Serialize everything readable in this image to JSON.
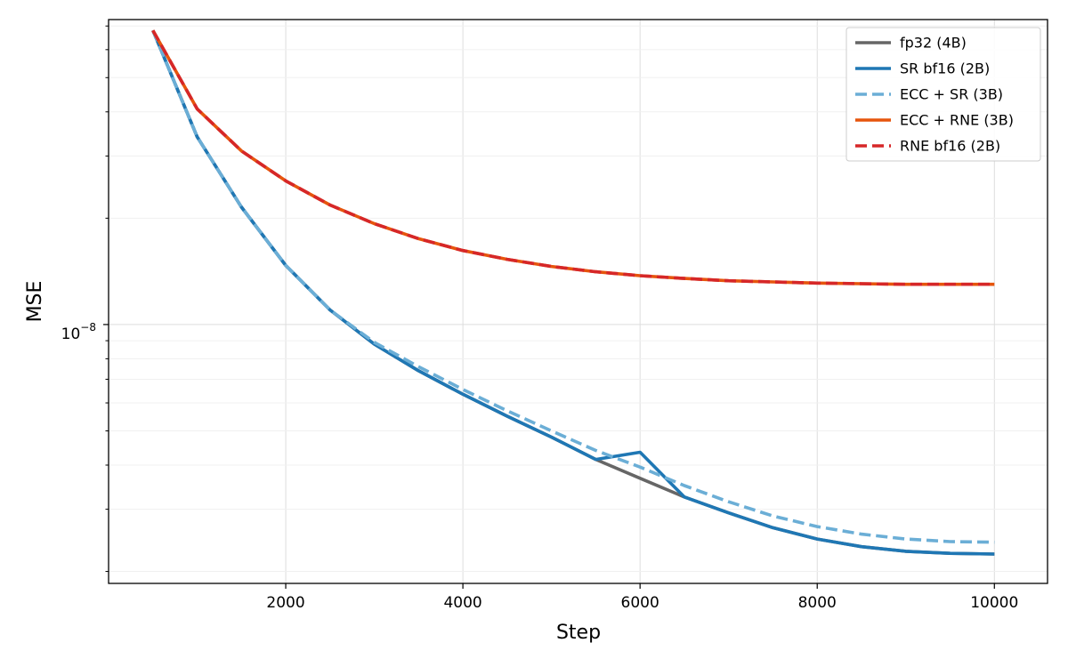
{
  "chart_data": {
    "type": "line",
    "title": "",
    "xlabel": "Step",
    "ylabel": "MSE",
    "xlim": [
      0,
      10600
    ],
    "ylim": [
      1.85e-09,
      7.3e-08
    ],
    "yscale": "log",
    "grid": true,
    "legend_position": "top-right",
    "x_ticks": [
      2000,
      4000,
      6000,
      8000,
      10000
    ],
    "x_tick_labels": [
      "2000",
      "4000",
      "6000",
      "8000",
      "10000"
    ],
    "y_major_tick": 1e-08,
    "y_tick_label_base": "10",
    "y_tick_label_exp": "−8",
    "series": [
      {
        "name": "fp32 (4B)",
        "color": "#666666",
        "dash": "solid",
        "x": [
          500,
          1000,
          1500,
          2000,
          2500,
          3000,
          3500,
          4000,
          4500,
          5000,
          5500,
          6000,
          6500,
          7000,
          7500,
          8000,
          8500,
          9000,
          9500,
          10000
        ],
        "y": [
          6.8e-08,
          3.4e-08,
          2.15e-08,
          1.47e-08,
          1.1e-08,
          8.8e-09,
          7.4e-09,
          6.35e-09,
          5.5e-09,
          4.8e-09,
          4.15e-09,
          3.67e-09,
          3.25e-09,
          2.93e-09,
          2.66e-09,
          2.47e-09,
          2.35e-09,
          2.28e-09,
          2.25e-09,
          2.24e-09
        ]
      },
      {
        "name": "SR bf16 (2B)",
        "color": "#1f77b4",
        "dash": "solid",
        "x": [
          500,
          1000,
          1500,
          2000,
          2500,
          3000,
          3500,
          4000,
          4500,
          5000,
          5500,
          6000,
          6500,
          7000,
          7500,
          8000,
          8500,
          9000,
          9500,
          10000
        ],
        "y": [
          6.8e-08,
          3.4e-08,
          2.15e-08,
          1.47e-08,
          1.1e-08,
          8.8e-09,
          7.4e-09,
          6.35e-09,
          5.5e-09,
          4.8e-09,
          4.15e-09,
          4.35e-09,
          3.25e-09,
          2.93e-09,
          2.66e-09,
          2.47e-09,
          2.35e-09,
          2.28e-09,
          2.25e-09,
          2.24e-09
        ]
      },
      {
        "name": "ECC + SR (3B)",
        "color": "#6baed6",
        "dash": "dashed",
        "x": [
          500,
          1000,
          1500,
          2000,
          2500,
          3000,
          3500,
          4000,
          4500,
          5000,
          5500,
          6000,
          6500,
          7000,
          7500,
          8000,
          8500,
          9000,
          9500,
          10000
        ],
        "y": [
          6.8e-08,
          3.4e-08,
          2.15e-08,
          1.47e-08,
          1.1e-08,
          8.9e-09,
          7.6e-09,
          6.55e-09,
          5.7e-09,
          5e-09,
          4.4e-09,
          3.95e-09,
          3.5e-09,
          3.15e-09,
          2.87e-09,
          2.68e-09,
          2.55e-09,
          2.47e-09,
          2.43e-09,
          2.42e-09
        ]
      },
      {
        "name": "ECC + RNE (3B)",
        "color": "#e6550d",
        "dash": "solid",
        "x": [
          500,
          1000,
          1500,
          2000,
          2500,
          3000,
          3500,
          4000,
          4500,
          5000,
          5500,
          6000,
          6500,
          7000,
          7500,
          8000,
          8500,
          9000,
          9500,
          10000
        ],
        "y": [
          6.8e-08,
          4.08e-08,
          3.1e-08,
          2.55e-08,
          2.18e-08,
          1.93e-08,
          1.75e-08,
          1.62e-08,
          1.53e-08,
          1.46e-08,
          1.41e-08,
          1.375e-08,
          1.35e-08,
          1.33e-08,
          1.32e-08,
          1.31e-08,
          1.305e-08,
          1.3e-08,
          1.3e-08,
          1.3e-08
        ]
      },
      {
        "name": "RNE bf16 (2B)",
        "color": "#d62728",
        "dash": "dashed",
        "x": [
          500,
          1000,
          1500,
          2000,
          2500,
          3000,
          3500,
          4000,
          4500,
          5000,
          5500,
          6000,
          6500,
          7000,
          7500,
          8000,
          8500,
          9000,
          9500,
          10000
        ],
        "y": [
          6.8e-08,
          4.08e-08,
          3.1e-08,
          2.55e-08,
          2.18e-08,
          1.93e-08,
          1.75e-08,
          1.62e-08,
          1.53e-08,
          1.46e-08,
          1.41e-08,
          1.375e-08,
          1.35e-08,
          1.33e-08,
          1.32e-08,
          1.31e-08,
          1.305e-08,
          1.3e-08,
          1.3e-08,
          1.3e-08
        ]
      }
    ]
  }
}
